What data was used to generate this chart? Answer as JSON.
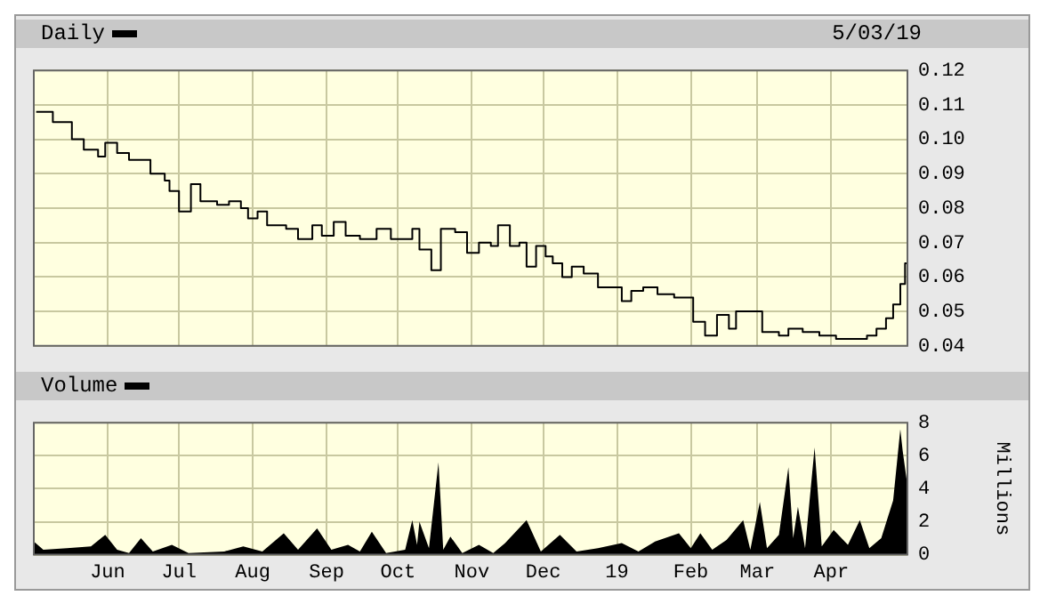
{
  "chart_data": [
    {
      "type": "step",
      "xlim": [
        "2018-05-01",
        "2019-05-03"
      ],
      "xticks": [
        {
          "value": "2018-06-01",
          "label": null
        },
        {
          "value": "2018-07-01",
          "label": null
        },
        {
          "value": "2018-08-01",
          "label": null
        },
        {
          "value": "2018-09-01",
          "label": null
        },
        {
          "value": "2018-10-01",
          "label": null
        },
        {
          "value": "2018-11-01",
          "label": null
        },
        {
          "value": "2018-12-01",
          "label": null
        },
        {
          "value": "2019-01-01",
          "label": null
        },
        {
          "value": "2019-02-01",
          "label": null
        },
        {
          "value": "2019-03-01",
          "label": null
        },
        {
          "value": "2019-04-01",
          "label": null
        }
      ],
      "ylim": [
        0.04,
        0.12
      ],
      "yticks": [
        0.04,
        0.05,
        0.06,
        0.07,
        0.08,
        0.09,
        {
          "value": 0.1,
          "label": "0.10"
        },
        0.11,
        0.12
      ],
      "tick_labels": "y",
      "grid": true,
      "legend": "top left",
      "marker": "none",
      "annotations": [
        "5/03/19"
      ],
      "x": [
        "2018-05-02",
        "2018-05-09",
        "2018-05-17",
        "2018-05-22",
        "2018-05-28",
        "2018-05-31",
        "2018-06-05",
        "2018-06-10",
        "2018-06-16",
        "2018-06-19",
        "2018-06-25",
        "2018-06-27",
        "2018-07-01",
        "2018-07-06",
        "2018-07-10",
        "2018-07-17",
        "2018-07-22",
        "2018-07-27",
        "2018-07-30",
        "2018-08-03",
        "2018-08-07",
        "2018-08-15",
        "2018-08-20",
        "2018-08-26",
        "2018-08-30",
        "2018-09-04",
        "2018-09-09",
        "2018-09-15",
        "2018-09-22",
        "2018-09-28",
        "2018-10-07",
        "2018-10-10",
        "2018-10-15",
        "2018-10-19",
        "2018-10-25",
        "2018-10-30",
        "2018-11-04",
        "2018-11-09",
        "2018-11-12",
        "2018-11-17",
        "2018-11-21",
        "2018-11-24",
        "2018-11-28",
        "2018-12-02",
        "2018-12-05",
        "2018-12-09",
        "2018-12-13",
        "2018-12-18",
        "2018-12-24",
        "2018-12-29",
        "2019-01-03",
        "2019-01-07",
        "2019-01-12",
        "2019-01-18",
        "2019-01-25",
        "2019-01-29",
        "2019-02-02",
        "2019-02-07",
        "2019-02-12",
        "2019-02-17",
        "2019-02-20",
        "2019-02-27",
        "2019-03-03",
        "2019-03-10",
        "2019-03-14",
        "2019-03-20",
        "2019-03-27",
        "2019-04-03",
        "2019-04-10",
        "2019-04-16",
        "2019-04-20",
        "2019-04-24",
        "2019-04-27",
        "2019-04-30",
        "2019-05-02",
        "2019-05-03"
      ],
      "series": [
        {
          "name": "Daily",
          "color": "#000000",
          "values": [
            0.108,
            0.105,
            0.1,
            0.097,
            0.095,
            0.099,
            0.096,
            0.094,
            0.094,
            0.09,
            0.088,
            0.085,
            0.079,
            0.087,
            0.082,
            0.081,
            0.082,
            0.08,
            0.077,
            0.079,
            0.075,
            0.074,
            0.071,
            0.075,
            0.072,
            0.076,
            0.072,
            0.071,
            0.074,
            0.071,
            0.074,
            0.068,
            0.062,
            0.074,
            0.073,
            0.067,
            0.07,
            0.069,
            0.075,
            0.069,
            0.07,
            0.063,
            0.069,
            0.066,
            0.064,
            0.06,
            0.063,
            0.061,
            0.057,
            0.057,
            0.053,
            0.056,
            0.057,
            0.055,
            0.054,
            0.054,
            0.047,
            0.043,
            0.049,
            0.045,
            0.05,
            0.05,
            0.044,
            0.043,
            0.045,
            0.044,
            0.043,
            0.042,
            0.042,
            0.043,
            0.045,
            0.048,
            0.052,
            0.058,
            0.064,
            0.063
          ]
        }
      ]
    },
    {
      "type": "area",
      "xlim": [
        "2018-05-01",
        "2019-05-03"
      ],
      "xticks": [
        {
          "value": "2018-06-01",
          "label": "Jun"
        },
        {
          "value": "2018-07-01",
          "label": "Jul"
        },
        {
          "value": "2018-08-01",
          "label": "Aug"
        },
        {
          "value": "2018-09-01",
          "label": "Sep"
        },
        {
          "value": "2018-10-01",
          "label": "Oct"
        },
        {
          "value": "2018-11-01",
          "label": "Nov"
        },
        {
          "value": "2018-12-01",
          "label": "Dec"
        },
        {
          "value": "2019-01-01",
          "label": "19"
        },
        {
          "value": "2019-02-01",
          "label": "Feb"
        },
        {
          "value": "2019-03-01",
          "label": "Mar"
        },
        {
          "value": "2019-04-01",
          "label": "Apr"
        }
      ],
      "ylim": [
        0,
        8
      ],
      "yticks": [
        0,
        2,
        4,
        6,
        8
      ],
      "ylabel": "Millions",
      "grid": true,
      "legend": "top left",
      "marker": "none",
      "x": [
        "2018-05-01",
        "2018-05-05",
        "2018-05-15",
        "2018-05-25",
        "2018-05-31",
        "2018-06-05",
        "2018-06-10",
        "2018-06-15",
        "2018-06-20",
        "2018-06-28",
        "2018-07-05",
        "2018-07-20",
        "2018-07-28",
        "2018-08-05",
        "2018-08-14",
        "2018-08-20",
        "2018-08-28",
        "2018-09-03",
        "2018-09-10",
        "2018-09-15",
        "2018-09-20",
        "2018-09-26",
        "2018-10-04",
        "2018-10-07",
        "2018-10-09",
        "2018-10-10",
        "2018-10-14",
        "2018-10-18",
        "2018-10-20",
        "2018-10-23",
        "2018-10-28",
        "2018-11-04",
        "2018-11-10",
        "2018-11-15",
        "2018-11-24",
        "2018-11-30",
        "2018-12-08",
        "2018-12-15",
        "2018-12-24",
        "2019-01-03",
        "2019-01-10",
        "2019-01-17",
        "2019-01-27",
        "2019-02-01",
        "2019-02-05",
        "2019-02-10",
        "2019-02-16",
        "2019-02-23",
        "2019-02-26",
        "2019-03-02",
        "2019-03-05",
        "2019-03-10",
        "2019-03-14",
        "2019-03-16",
        "2019-03-18",
        "2019-03-21",
        "2019-03-25",
        "2019-03-28",
        "2019-04-02",
        "2019-04-08",
        "2019-04-13",
        "2019-04-17",
        "2019-04-22",
        "2019-04-27",
        "2019-04-30",
        "2019-05-01",
        "2019-05-03"
      ],
      "series": [
        {
          "name": "Volume",
          "color": "#000000",
          "values": [
            0.8,
            0.3,
            0.4,
            0.5,
            1.2,
            0.3,
            0.1,
            1.0,
            0.2,
            0.6,
            0.1,
            0.2,
            0.5,
            0.2,
            1.3,
            0.3,
            1.6,
            0.3,
            0.6,
            0.2,
            1.4,
            0.1,
            0.3,
            2.1,
            0.6,
            2.0,
            0.4,
            5.6,
            0.3,
            1.1,
            0.1,
            0.6,
            0.1,
            0.7,
            2.1,
            0.2,
            1.2,
            0.2,
            0.4,
            0.7,
            0.2,
            0.8,
            1.3,
            0.4,
            1.3,
            0.3,
            0.9,
            2.1,
            0.3,
            3.2,
            0.4,
            1.2,
            5.3,
            1.0,
            2.9,
            0.4,
            6.5,
            0.5,
            1.5,
            0.6,
            2.1,
            0.4,
            1.0,
            3.3,
            7.6,
            6.3,
            4.2
          ]
        }
      ]
    }
  ]
}
